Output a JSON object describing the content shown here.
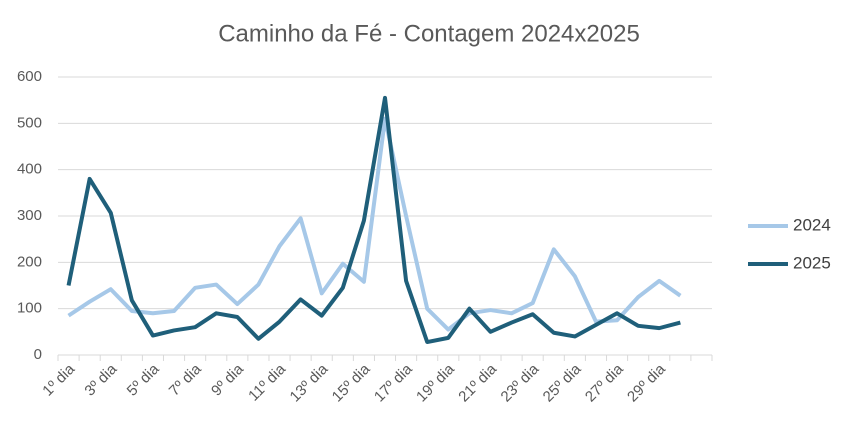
{
  "chart_data": {
    "type": "line",
    "title": "Caminho da Fé - Contagem 2024x2025",
    "categories": [
      "1º dia",
      null,
      "3º dia",
      null,
      "5º dia",
      null,
      "7º dia",
      null,
      "9º dia",
      null,
      "11º dia",
      null,
      "13º dia",
      null,
      "15º dia",
      null,
      "17º dia",
      null,
      "19º dia",
      null,
      "21º dia",
      null,
      "23º dia",
      null,
      "25º dia",
      null,
      "27º dia",
      null,
      "29º dia",
      null,
      null
    ],
    "series": [
      {
        "name": "2024",
        "color": "#a6c8e8",
        "values": [
          85,
          115,
          142,
          95,
          90,
          95,
          145,
          152,
          110,
          152,
          235,
          295,
          133,
          197,
          158,
          510,
          300,
          100,
          55,
          90,
          97,
          90,
          112,
          228,
          170,
          72,
          75,
          125,
          160,
          128,
          null
        ]
      },
      {
        "name": "2025",
        "color": "#1f5f7a",
        "values": [
          150,
          380,
          307,
          118,
          42,
          53,
          60,
          90,
          82,
          35,
          72,
          120,
          85,
          145,
          290,
          555,
          160,
          28,
          37,
          100,
          50,
          70,
          88,
          48,
          40,
          65,
          90,
          63,
          58,
          70,
          null
        ]
      }
    ],
    "ylim": [
      0,
      600
    ],
    "yticks": [
      0,
      100,
      200,
      300,
      400,
      500,
      600
    ],
    "grid": true,
    "legend": "right"
  }
}
